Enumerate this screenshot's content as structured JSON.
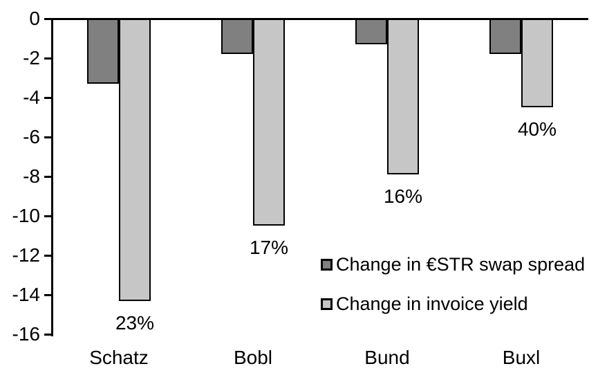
{
  "chart_data": {
    "type": "bar",
    "orientation": "vertical",
    "title": "",
    "xlabel": "",
    "ylabel": "",
    "grid": false,
    "categories": [
      "Schatz",
      "Bobl",
      "Bund",
      "Buxl"
    ],
    "series": [
      {
        "name": "Change in €STR swap spread",
        "color": "#808080",
        "values": [
          -3.3,
          -1.8,
          -1.3,
          -1.8
        ],
        "labels": [
          "",
          "",
          "",
          ""
        ]
      },
      {
        "name": "Change in invoice yield",
        "color": "#C6C6C6",
        "values": [
          -14.3,
          -10.5,
          -7.9,
          -4.5
        ],
        "labels": [
          "23%",
          "17%",
          "16%",
          "40%"
        ]
      }
    ],
    "y_axis": {
      "min": -16,
      "max": 0,
      "tick_step": 2,
      "ticks": [
        0,
        -2,
        -4,
        -6,
        -8,
        -10,
        -12,
        -14,
        -16
      ]
    },
    "legend": {
      "position": "inside-bottom-right"
    },
    "axis_color": "#000000"
  }
}
